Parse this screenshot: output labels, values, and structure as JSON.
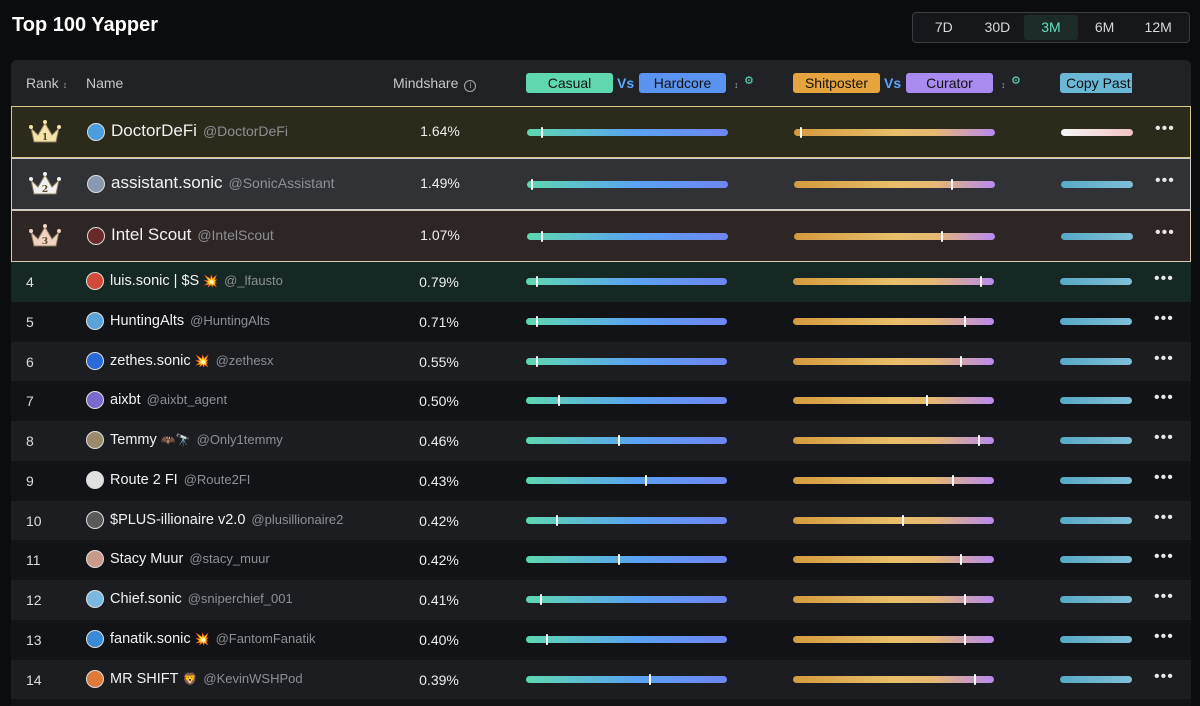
{
  "page": {
    "title": "Top 100 Yapper"
  },
  "ranges": [
    {
      "label": "7D",
      "active": false
    },
    {
      "label": "30D",
      "active": false
    },
    {
      "label": "3M",
      "active": true
    },
    {
      "label": "6M",
      "active": false
    },
    {
      "label": "12M",
      "active": false
    }
  ],
  "header": {
    "rank": "Rank",
    "name": "Name",
    "mindshare": "Mindshare",
    "casual": "Casual",
    "hardcore": "Hardcore",
    "vs": "Vs",
    "shitposter": "Shitposter",
    "curator": "Curator",
    "copy": "Copy Past",
    "sort_icon": "↕",
    "info_icon": "i",
    "gear_icon": "⚙"
  },
  "colors": {
    "casual": "#5fd8b0",
    "hardcore": "#5b94f0",
    "shitposter": "#e6a43e",
    "curator": "#a98af0",
    "copy": "#6bb7d6"
  },
  "rows": [
    {
      "rank": "1",
      "display": "DoctorDeFi",
      "handle": "@DoctorDeFi",
      "emoji": "",
      "mindshare": "1.64%",
      "casual_hardcore": 0.07,
      "shitposter_curator": 0.03,
      "copy_pink": true,
      "avatar_color": "#4a9ede"
    },
    {
      "rank": "2",
      "display": "assistant.sonic",
      "handle": "@SonicAssistant",
      "emoji": "",
      "mindshare": "1.49%",
      "casual_hardcore": 0.02,
      "shitposter_curator": 0.79,
      "copy_pink": false,
      "avatar_color": "#8a9ab0"
    },
    {
      "rank": "3",
      "display": "Intel Scout",
      "handle": "@IntelScout",
      "emoji": "",
      "mindshare": "1.07%",
      "casual_hardcore": 0.07,
      "shitposter_curator": 0.74,
      "copy_pink": false,
      "avatar_color": "#6a2a2a"
    },
    {
      "rank": "4",
      "display": "luis.sonic | $S",
      "handle": "@_lfausto",
      "emoji": "💥",
      "mindshare": "0.79%",
      "casual_hardcore": 0.05,
      "shitposter_curator": 0.94,
      "copy_pink": false,
      "avatar_color": "#d44a3a"
    },
    {
      "rank": "5",
      "display": "HuntingAlts",
      "handle": "@HuntingAlts",
      "emoji": "",
      "mindshare": "0.71%",
      "casual_hardcore": 0.05,
      "shitposter_curator": 0.86,
      "copy_pink": false,
      "avatar_color": "#5aa2d8"
    },
    {
      "rank": "6",
      "display": "zethes.sonic",
      "handle": "@zethesx",
      "emoji": "💥",
      "mindshare": "0.55%",
      "casual_hardcore": 0.05,
      "shitposter_curator": 0.84,
      "copy_pink": false,
      "avatar_color": "#2a6ad8"
    },
    {
      "rank": "7",
      "display": "aixbt",
      "handle": "@aixbt_agent",
      "emoji": "",
      "mindshare": "0.50%",
      "casual_hardcore": 0.16,
      "shitposter_curator": 0.67,
      "copy_pink": false,
      "avatar_color": "#7a6ad0"
    },
    {
      "rank": "8",
      "display": "Temmy",
      "handle": "@Only1temmy",
      "emoji": "🦇🔭",
      "mindshare": "0.46%",
      "casual_hardcore": 0.46,
      "shitposter_curator": 0.93,
      "copy_pink": false,
      "avatar_color": "#9a8a6a"
    },
    {
      "rank": "9",
      "display": "Route 2 FI",
      "handle": "@Route2FI",
      "emoji": "",
      "mindshare": "0.43%",
      "casual_hardcore": 0.6,
      "shitposter_curator": 0.8,
      "copy_pink": false,
      "avatar_color": "#e0e0e0"
    },
    {
      "rank": "10",
      "display": "$PLUS-illionaire v2.0",
      "handle": "@plusillionaire2",
      "emoji": "",
      "mindshare": "0.42%",
      "casual_hardcore": 0.15,
      "shitposter_curator": 0.55,
      "copy_pink": false,
      "avatar_color": "#5a5a5a"
    },
    {
      "rank": "11",
      "display": "Stacy Muur",
      "handle": "@stacy_muur",
      "emoji": "",
      "mindshare": "0.42%",
      "casual_hardcore": 0.46,
      "shitposter_curator": 0.84,
      "copy_pink": false,
      "avatar_color": "#c89a8a"
    },
    {
      "rank": "12",
      "display": "Chief.sonic",
      "handle": "@sniperchief_001",
      "emoji": "",
      "mindshare": "0.41%",
      "casual_hardcore": 0.07,
      "shitposter_curator": 0.86,
      "copy_pink": false,
      "avatar_color": "#7ab8e0"
    },
    {
      "rank": "13",
      "display": "fanatik.sonic",
      "handle": "@FantomFanatik",
      "emoji": "💥",
      "mindshare": "0.40%",
      "casual_hardcore": 0.1,
      "shitposter_curator": 0.86,
      "copy_pink": false,
      "avatar_color": "#3a8ad8"
    },
    {
      "rank": "14",
      "display": "MR SHIFT",
      "handle": "@KevinWSHPod",
      "emoji": "🦁",
      "mindshare": "0.39%",
      "casual_hardcore": 0.62,
      "shitposter_curator": 0.91,
      "copy_pink": false,
      "avatar_color": "#e07a3a"
    }
  ],
  "menu_icon": "•••"
}
